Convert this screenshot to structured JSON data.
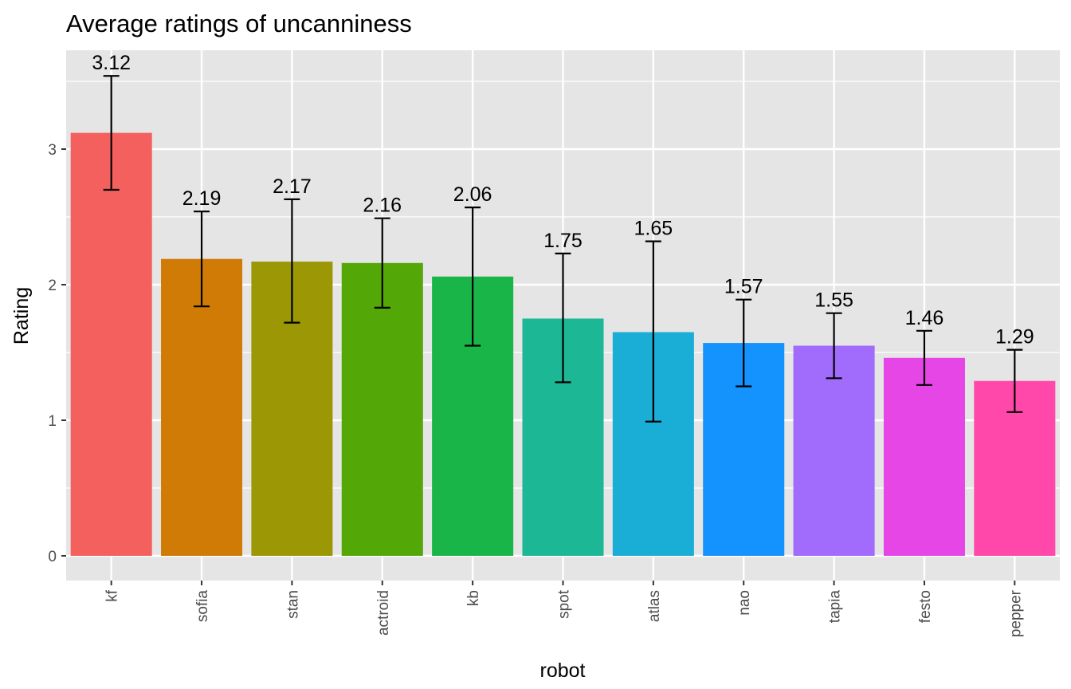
{
  "chart_data": {
    "type": "bar",
    "title": "Average ratings of uncanniness",
    "xlabel": "robot",
    "ylabel": "Rating",
    "categories": [
      "kf",
      "sofia",
      "stan",
      "actroid",
      "kb",
      "spot",
      "atlas",
      "nao",
      "tapia",
      "festo",
      "pepper"
    ],
    "values": [
      3.12,
      2.19,
      2.17,
      2.16,
      2.06,
      1.75,
      1.65,
      1.57,
      1.55,
      1.46,
      1.29
    ],
    "value_labels": [
      "3.12",
      "2.19",
      "2.17",
      "2.16",
      "2.06",
      "1.75",
      "1.65",
      "1.57",
      "1.55",
      "1.46",
      "1.29"
    ],
    "error_low": [
      2.7,
      1.84,
      1.72,
      1.83,
      1.55,
      1.28,
      0.99,
      1.25,
      1.31,
      1.26,
      1.06
    ],
    "error_high": [
      3.54,
      2.54,
      2.63,
      2.49,
      2.57,
      2.23,
      2.32,
      1.89,
      1.79,
      1.66,
      1.52
    ],
    "colors": [
      "#F8766D",
      "#D89000",
      "#A3A500",
      "#39B600",
      "#00BF7D",
      "#00BFC4",
      "#00B0F6",
      "#35A2FF",
      "#9590FF",
      "#E76BF3",
      "#FF62BC"
    ],
    "bar_colors_rendered": [
      "#F3605D",
      "#D07B06",
      "#9B9705",
      "#53A707",
      "#19B548",
      "#1CB896",
      "#1AADD6",
      "#1492FD",
      "#A16BFB",
      "#E646E6",
      "#FF48AA"
    ],
    "ylim": [
      -0.17,
      3.72
    ],
    "yticks": [
      0,
      1,
      2,
      3
    ],
    "ytick_labels": [
      "0",
      "1",
      "2",
      "3"
    ],
    "grid": true,
    "panel_background": "#E5E5E5",
    "grid_color": "#FFFFFF",
    "legend": "none"
  }
}
